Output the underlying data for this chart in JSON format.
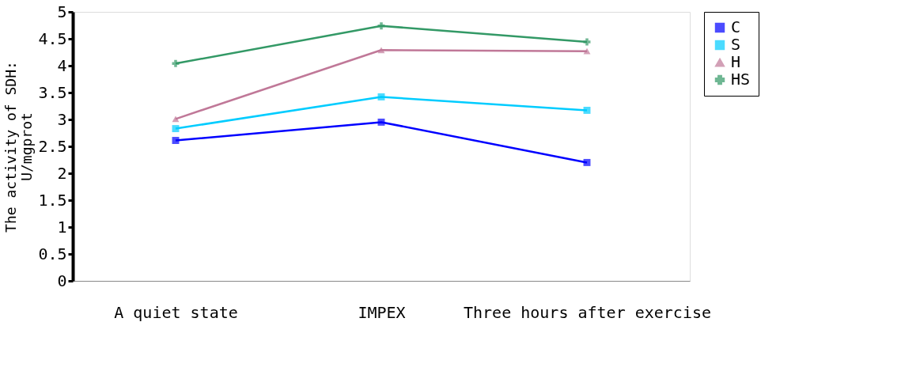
{
  "chart_data": {
    "type": "line",
    "ylabel": "The activity of SDH:\nU/mgprot",
    "categories": [
      "A quiet state",
      "IMPEX",
      "Three hours after exercise"
    ],
    "series": [
      {
        "name": "C",
        "color": "#0000ff",
        "marker": "square",
        "values": [
          2.61,
          2.95,
          2.2
        ]
      },
      {
        "name": "S",
        "color": "#00ccff",
        "marker": "square",
        "values": [
          2.83,
          3.42,
          3.17
        ]
      },
      {
        "name": "H",
        "color": "#c07898",
        "marker": "triangle",
        "values": [
          3.01,
          4.29,
          4.27
        ]
      },
      {
        "name": "HS",
        "color": "#339966",
        "marker": "cross",
        "values": [
          4.04,
          4.74,
          4.44
        ]
      }
    ],
    "ylim": [
      0,
      5
    ],
    "yticks": [
      0,
      0.5,
      1,
      1.5,
      2,
      2.5,
      3,
      3.5,
      4,
      4.5,
      5
    ],
    "grid": false,
    "legend": "right",
    "line_style": "solid"
  }
}
